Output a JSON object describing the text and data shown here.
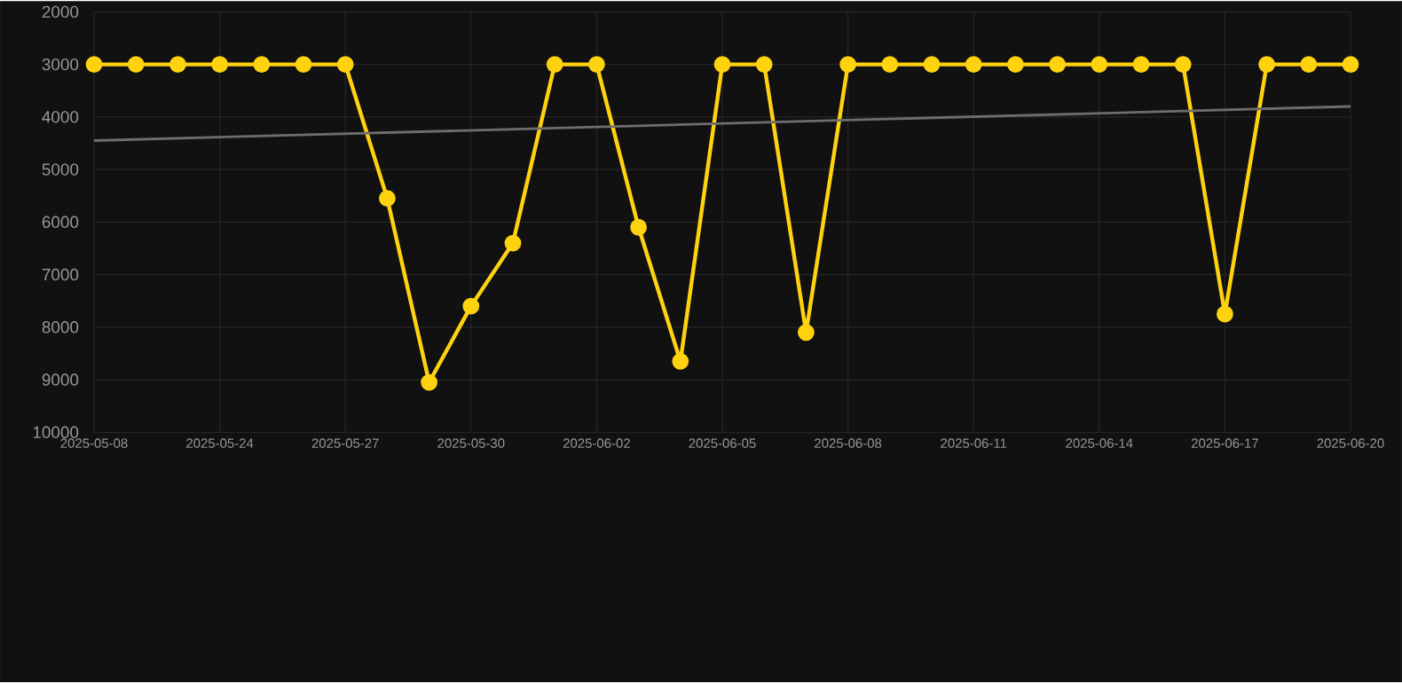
{
  "chart_data": {
    "type": "line",
    "categories": [
      "2025-05-08",
      null,
      null,
      "2025-05-24",
      null,
      null,
      "2025-05-27",
      null,
      null,
      "2025-05-30",
      null,
      null,
      "2025-06-02",
      null,
      null,
      "2025-06-05",
      null,
      null,
      "2025-06-08",
      null,
      null,
      "2025-06-11",
      null,
      null,
      "2025-06-14",
      null,
      null,
      "2025-06-17",
      null,
      null,
      "2025-06-20"
    ],
    "ylim": [
      10000,
      2000
    ],
    "yticks": [
      2000,
      3000,
      4000,
      5000,
      6000,
      7000,
      8000,
      9000,
      10000
    ],
    "grid": true,
    "marker": "circle",
    "series": [
      {
        "color": "#ffd20f",
        "values": [
          3000,
          3000,
          3000,
          3000,
          3000,
          3000,
          3000,
          5550,
          9050,
          7600,
          6400,
          3000,
          3000,
          6100,
          8650,
          3000,
          3000,
          8100,
          3000,
          3000,
          3000,
          3000,
          3000,
          3000,
          3000,
          3000,
          3000,
          7750,
          3000,
          3000,
          3000
        ]
      },
      {
        "type": "line",
        "color": "#6e6e6e",
        "marker": "none",
        "values": [
          4450,
          null,
          null,
          null,
          null,
          null,
          null,
          null,
          null,
          null,
          null,
          null,
          null,
          null,
          null,
          null,
          null,
          null,
          null,
          null,
          null,
          null,
          null,
          null,
          null,
          null,
          null,
          null,
          null,
          null,
          3800
        ]
      }
    ]
  }
}
